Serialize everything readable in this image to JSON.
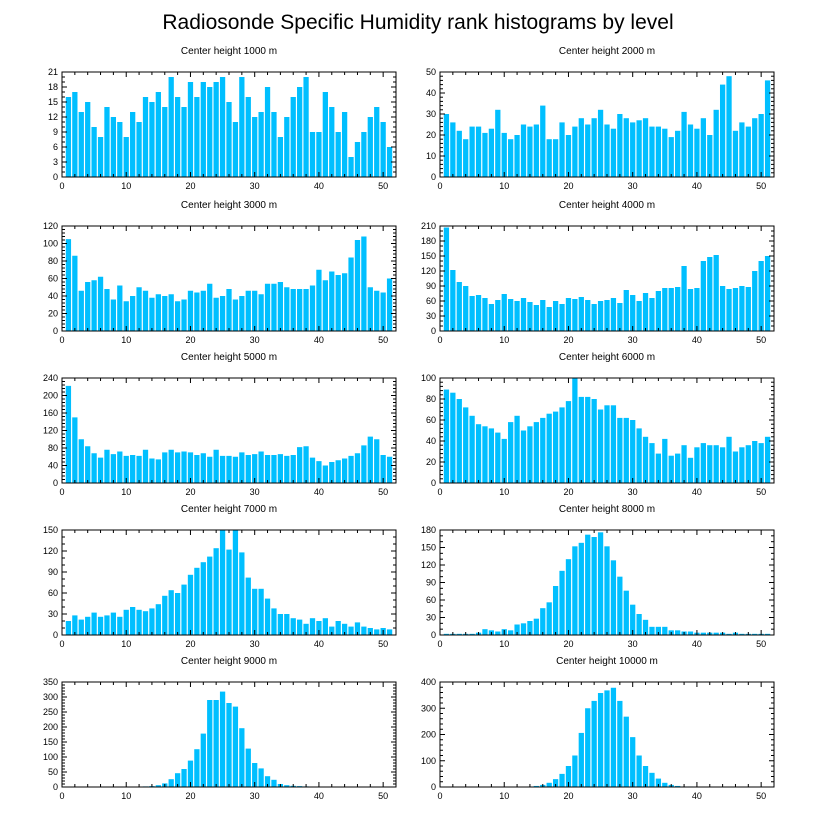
{
  "title": "Radiosonde Specific Humidity rank histograms by level",
  "colors": {
    "bar": "#00bfff",
    "axis": "#000000",
    "background": "#ffffff"
  },
  "chart_data": [
    {
      "type": "bar",
      "title": "Center height 1000 m",
      "xlim": [
        0,
        52
      ],
      "ylim": [
        0,
        21
      ],
      "xticks": [
        0,
        10,
        20,
        30,
        40,
        50
      ],
      "yticks": [
        0,
        3,
        6,
        9,
        12,
        15,
        18,
        21
      ],
      "x": [
        1,
        2,
        3,
        4,
        5,
        6,
        7,
        8,
        9,
        10,
        11,
        12,
        13,
        14,
        15,
        16,
        17,
        18,
        19,
        20,
        21,
        22,
        23,
        24,
        25,
        26,
        27,
        28,
        29,
        30,
        31,
        32,
        33,
        34,
        35,
        36,
        37,
        38,
        39,
        40,
        41,
        42,
        43,
        44,
        45,
        46,
        47,
        48,
        49,
        50,
        51
      ],
      "values": [
        16,
        17,
        13,
        15,
        10,
        8,
        14,
        12,
        11,
        8,
        13,
        11,
        16,
        15,
        17,
        14,
        20,
        16,
        14,
        19,
        16,
        19,
        18,
        19,
        20,
        15,
        11,
        20,
        16,
        12,
        13,
        18,
        13,
        8,
        12,
        16,
        18,
        20,
        9,
        9,
        17,
        14,
        9,
        13,
        4,
        7,
        9,
        12,
        14,
        11,
        6
      ]
    },
    {
      "type": "bar",
      "title": "Center height 2000 m",
      "xlim": [
        0,
        52
      ],
      "ylim": [
        0,
        50
      ],
      "xticks": [
        0,
        10,
        20,
        30,
        40,
        50
      ],
      "yticks": [
        0,
        10,
        20,
        30,
        40,
        50
      ],
      "x": [
        1,
        2,
        3,
        4,
        5,
        6,
        7,
        8,
        9,
        10,
        11,
        12,
        13,
        14,
        15,
        16,
        17,
        18,
        19,
        20,
        21,
        22,
        23,
        24,
        25,
        26,
        27,
        28,
        29,
        30,
        31,
        32,
        33,
        34,
        35,
        36,
        37,
        38,
        39,
        40,
        41,
        42,
        43,
        44,
        45,
        46,
        47,
        48,
        49,
        50,
        51
      ],
      "values": [
        30,
        26,
        22,
        18,
        24,
        24,
        21,
        23,
        32,
        21,
        18,
        20,
        25,
        24,
        25,
        34,
        18,
        18,
        26,
        20,
        24,
        28,
        25,
        28,
        32,
        25,
        23,
        30,
        28,
        26,
        27,
        28,
        24,
        24,
        23,
        19,
        22,
        31,
        25,
        23,
        28,
        20,
        32,
        44,
        48,
        22,
        26,
        24,
        28,
        30,
        46
      ]
    },
    {
      "type": "bar",
      "title": "Center height 3000 m",
      "xlim": [
        0,
        52
      ],
      "ylim": [
        0,
        120
      ],
      "xticks": [
        0,
        10,
        20,
        30,
        40,
        50
      ],
      "yticks": [
        0,
        20,
        40,
        60,
        80,
        100,
        120
      ],
      "x": [
        1,
        2,
        3,
        4,
        5,
        6,
        7,
        8,
        9,
        10,
        11,
        12,
        13,
        14,
        15,
        16,
        17,
        18,
        19,
        20,
        21,
        22,
        23,
        24,
        25,
        26,
        27,
        28,
        29,
        30,
        31,
        32,
        33,
        34,
        35,
        36,
        37,
        38,
        39,
        40,
        41,
        42,
        43,
        44,
        45,
        46,
        47,
        48,
        49,
        50,
        51
      ],
      "values": [
        105,
        86,
        46,
        56,
        58,
        62,
        48,
        36,
        52,
        34,
        40,
        50,
        46,
        38,
        42,
        40,
        42,
        34,
        36,
        46,
        44,
        46,
        54,
        38,
        40,
        48,
        36,
        40,
        46,
        46,
        42,
        54,
        54,
        56,
        50,
        48,
        48,
        48,
        52,
        70,
        58,
        68,
        64,
        66,
        84,
        104,
        108,
        50,
        46,
        44,
        60
      ]
    },
    {
      "type": "bar",
      "title": "Center height 4000 m",
      "xlim": [
        0,
        52
      ],
      "ylim": [
        0,
        210
      ],
      "xticks": [
        0,
        10,
        20,
        30,
        40,
        50
      ],
      "yticks": [
        0,
        30,
        60,
        90,
        120,
        150,
        180,
        210
      ],
      "x": [
        1,
        2,
        3,
        4,
        5,
        6,
        7,
        8,
        9,
        10,
        11,
        12,
        13,
        14,
        15,
        16,
        17,
        18,
        19,
        20,
        21,
        22,
        23,
        24,
        25,
        26,
        27,
        28,
        29,
        30,
        31,
        32,
        33,
        34,
        35,
        36,
        37,
        38,
        39,
        40,
        41,
        42,
        43,
        44,
        45,
        46,
        47,
        48,
        49,
        50,
        51
      ],
      "values": [
        207,
        122,
        98,
        90,
        70,
        72,
        66,
        54,
        62,
        74,
        64,
        60,
        66,
        58,
        52,
        62,
        48,
        60,
        54,
        66,
        64,
        68,
        62,
        54,
        60,
        62,
        66,
        56,
        82,
        72,
        60,
        76,
        66,
        80,
        86,
        86,
        88,
        130,
        84,
        86,
        140,
        148,
        152,
        90,
        84,
        86,
        90,
        88,
        120,
        140,
        150
      ]
    },
    {
      "type": "bar",
      "title": "Center height 5000 m",
      "xlim": [
        0,
        52
      ],
      "ylim": [
        0,
        240
      ],
      "xticks": [
        0,
        10,
        20,
        30,
        40,
        50
      ],
      "yticks": [
        0,
        40,
        80,
        120,
        160,
        200,
        240
      ],
      "x": [
        1,
        2,
        3,
        4,
        5,
        6,
        7,
        8,
        9,
        10,
        11,
        12,
        13,
        14,
        15,
        16,
        17,
        18,
        19,
        20,
        21,
        22,
        23,
        24,
        25,
        26,
        27,
        28,
        29,
        30,
        31,
        32,
        33,
        34,
        35,
        36,
        37,
        38,
        39,
        40,
        41,
        42,
        43,
        44,
        45,
        46,
        47,
        48,
        49,
        50,
        51
      ],
      "values": [
        222,
        150,
        100,
        84,
        68,
        58,
        76,
        66,
        72,
        62,
        64,
        62,
        76,
        56,
        54,
        70,
        76,
        70,
        72,
        70,
        64,
        68,
        60,
        76,
        62,
        62,
        60,
        70,
        64,
        66,
        72,
        64,
        64,
        66,
        62,
        64,
        82,
        84,
        58,
        50,
        40,
        48,
        52,
        56,
        62,
        68,
        86,
        106,
        100,
        64,
        60
      ]
    },
    {
      "type": "bar",
      "title": "Center height 6000 m",
      "xlim": [
        0,
        52
      ],
      "ylim": [
        0,
        100
      ],
      "xticks": [
        0,
        10,
        20,
        30,
        40,
        50
      ],
      "yticks": [
        0,
        20,
        40,
        60,
        80,
        100
      ],
      "x": [
        1,
        2,
        3,
        4,
        5,
        6,
        7,
        8,
        9,
        10,
        11,
        12,
        13,
        14,
        15,
        16,
        17,
        18,
        19,
        20,
        21,
        22,
        23,
        24,
        25,
        26,
        27,
        28,
        29,
        30,
        31,
        32,
        33,
        34,
        35,
        36,
        37,
        38,
        39,
        40,
        41,
        42,
        43,
        44,
        45,
        46,
        47,
        48,
        49,
        50,
        51
      ],
      "values": [
        89,
        86,
        80,
        72,
        64,
        56,
        54,
        52,
        48,
        42,
        58,
        64,
        50,
        54,
        58,
        62,
        66,
        68,
        72,
        78,
        100,
        82,
        82,
        80,
        70,
        74,
        74,
        62,
        62,
        60,
        52,
        44,
        38,
        28,
        42,
        26,
        28,
        36,
        24,
        34,
        38,
        36,
        36,
        34,
        44,
        30,
        34,
        36,
        40,
        38,
        44
      ]
    },
    {
      "type": "bar",
      "title": "Center height 7000 m",
      "xlim": [
        0,
        52
      ],
      "ylim": [
        0,
        150
      ],
      "xticks": [
        0,
        10,
        20,
        30,
        40,
        50
      ],
      "yticks": [
        0,
        30,
        60,
        90,
        120,
        150
      ],
      "x": [
        1,
        2,
        3,
        4,
        5,
        6,
        7,
        8,
        9,
        10,
        11,
        12,
        13,
        14,
        15,
        16,
        17,
        18,
        19,
        20,
        21,
        22,
        23,
        24,
        25,
        26,
        27,
        28,
        29,
        30,
        31,
        32,
        33,
        34,
        35,
        36,
        37,
        38,
        39,
        40,
        41,
        42,
        43,
        44,
        45,
        46,
        47,
        48,
        49,
        50,
        51
      ],
      "values": [
        20,
        28,
        22,
        26,
        32,
        26,
        28,
        32,
        26,
        36,
        40,
        36,
        34,
        38,
        44,
        56,
        64,
        60,
        72,
        86,
        96,
        104,
        112,
        124,
        150,
        122,
        150,
        118,
        82,
        66,
        66,
        52,
        38,
        30,
        30,
        24,
        22,
        16,
        24,
        20,
        24,
        12,
        20,
        16,
        12,
        18,
        12,
        10,
        8,
        10,
        8
      ]
    },
    {
      "type": "bar",
      "title": "Center height 8000 m",
      "xlim": [
        0,
        52
      ],
      "ylim": [
        0,
        180
      ],
      "xticks": [
        0,
        10,
        20,
        30,
        40,
        50
      ],
      "yticks": [
        0,
        30,
        60,
        90,
        120,
        150,
        180
      ],
      "x": [
        1,
        2,
        3,
        4,
        5,
        6,
        7,
        8,
        9,
        10,
        11,
        12,
        13,
        14,
        15,
        16,
        17,
        18,
        19,
        20,
        21,
        22,
        23,
        24,
        25,
        26,
        27,
        28,
        29,
        30,
        31,
        32,
        33,
        34,
        35,
        36,
        37,
        38,
        39,
        40,
        41,
        42,
        43,
        44,
        45,
        46,
        47,
        48,
        49,
        50,
        51
      ],
      "values": [
        2,
        2,
        2,
        2,
        2,
        4,
        10,
        8,
        6,
        10,
        8,
        18,
        20,
        24,
        28,
        46,
        56,
        84,
        110,
        130,
        152,
        158,
        172,
        168,
        176,
        152,
        128,
        100,
        76,
        52,
        36,
        26,
        14,
        14,
        14,
        8,
        8,
        6,
        6,
        4,
        4,
        4,
        4,
        4,
        2,
        4,
        2,
        2,
        2,
        2,
        2
      ]
    },
    {
      "type": "bar",
      "title": "Center height 9000 m",
      "xlim": [
        0,
        52
      ],
      "ylim": [
        0,
        350
      ],
      "xticks": [
        0,
        10,
        20,
        30,
        40,
        50
      ],
      "yticks": [
        0,
        50,
        100,
        150,
        200,
        250,
        300,
        350
      ],
      "x": [
        1,
        2,
        3,
        4,
        5,
        6,
        7,
        8,
        9,
        10,
        11,
        12,
        13,
        14,
        15,
        16,
        17,
        18,
        19,
        20,
        21,
        22,
        23,
        24,
        25,
        26,
        27,
        28,
        29,
        30,
        31,
        32,
        33,
        34,
        35,
        36,
        37,
        38,
        39,
        40,
        41,
        42,
        43,
        44,
        45,
        46,
        47,
        48,
        49,
        50,
        51
      ],
      "values": [
        1,
        1,
        1,
        1,
        1,
        1,
        1,
        1,
        1,
        1,
        1,
        1,
        2,
        3,
        6,
        12,
        26,
        46,
        60,
        88,
        126,
        178,
        290,
        290,
        318,
        280,
        268,
        196,
        128,
        80,
        62,
        36,
        24,
        10,
        6,
        4,
        3,
        2,
        1,
        1,
        1,
        1,
        1,
        1,
        1,
        1,
        1,
        1,
        1,
        1,
        1
      ]
    },
    {
      "type": "bar",
      "title": "Center height 10000 m",
      "xlim": [
        0,
        52
      ],
      "ylim": [
        0,
        400
      ],
      "xticks": [
        0,
        10,
        20,
        30,
        40,
        50
      ],
      "yticks": [
        0,
        100,
        200,
        300,
        400
      ],
      "x": [
        1,
        2,
        3,
        4,
        5,
        6,
        7,
        8,
        9,
        10,
        11,
        12,
        13,
        14,
        15,
        16,
        17,
        18,
        19,
        20,
        21,
        22,
        23,
        24,
        25,
        26,
        27,
        28,
        29,
        30,
        31,
        32,
        33,
        34,
        35,
        36,
        37,
        38,
        39,
        40,
        41,
        42,
        43,
        44,
        45,
        46,
        47,
        48,
        49,
        50,
        51
      ],
      "values": [
        1,
        1,
        1,
        1,
        1,
        1,
        1,
        1,
        1,
        1,
        1,
        1,
        1,
        2,
        4,
        8,
        16,
        30,
        50,
        80,
        120,
        206,
        300,
        328,
        358,
        368,
        378,
        328,
        268,
        190,
        120,
        80,
        54,
        32,
        16,
        8,
        4,
        2,
        2,
        1,
        1,
        1,
        1,
        1,
        1,
        1,
        1,
        1,
        1,
        1,
        1
      ]
    }
  ]
}
